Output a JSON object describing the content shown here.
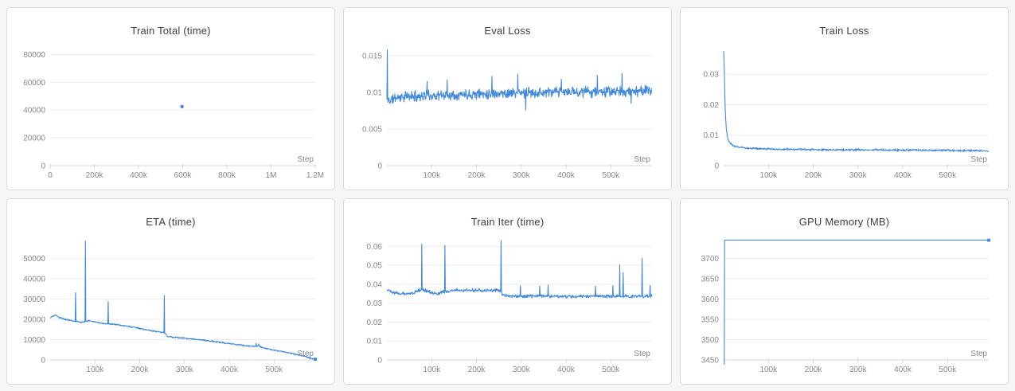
{
  "page": {
    "background": "#f6f6f7",
    "panel_background": "#ffffff",
    "panel_border": "#d9dadb"
  },
  "colors": {
    "line": "#4289dc",
    "grid": "#ededef",
    "axis": "#d6d8da",
    "tick_text": "#85888e",
    "title_text": "#3b4046"
  },
  "step_label": "Step",
  "chart_data": [
    {
      "title": "Train Total (time)",
      "type": "scatter",
      "xlabel": "Step",
      "xlim": [
        0,
        1200000
      ],
      "ylim": [
        0,
        86000
      ],
      "xtick_vals": [
        0,
        200000,
        400000,
        600000,
        800000,
        1000000,
        1200000
      ],
      "xtick_labels": [
        "0",
        "200k",
        "400k",
        "600k",
        "800k",
        "1M",
        "1.2M"
      ],
      "ytick_vals": [
        0,
        20000,
        40000,
        60000,
        80000
      ],
      "ytick_labels": [
        "0",
        "20000",
        "40000",
        "60000",
        "80000"
      ],
      "points": [
        [
          597000,
          42500
        ]
      ]
    },
    {
      "title": "Eval Loss",
      "type": "line",
      "xlabel": "Step",
      "xlim": [
        0,
        592000
      ],
      "ylim": [
        0,
        0.0163
      ],
      "xtick_vals": [
        100000,
        200000,
        300000,
        400000,
        500000
      ],
      "xtick_labels": [
        "100k",
        "200k",
        "300k",
        "400k",
        "500k"
      ],
      "ytick_vals": [
        0,
        0.005,
        0.01,
        0.015
      ],
      "ytick_labels": [
        "0",
        "0.005",
        "0.01",
        "0.015"
      ],
      "baseline": [
        [
          0,
          0.009
        ],
        [
          8000,
          0.0089
        ],
        [
          20000,
          0.0093
        ],
        [
          60000,
          0.0095
        ],
        [
          120000,
          0.0096
        ],
        [
          200000,
          0.0098
        ],
        [
          280000,
          0.0099
        ],
        [
          360000,
          0.01
        ],
        [
          450000,
          0.0101
        ],
        [
          530000,
          0.0101
        ],
        [
          592000,
          0.0103
        ]
      ],
      "noise": 0.00085,
      "samples": 700,
      "seed": 11,
      "spikes": [
        [
          900,
          0.0158
        ],
        [
          90000,
          0.0115
        ],
        [
          135000,
          0.0117
        ],
        [
          235000,
          0.0122
        ],
        [
          292000,
          0.0125
        ],
        [
          310000,
          0.0076
        ],
        [
          390000,
          0.0118
        ],
        [
          470000,
          0.0123
        ],
        [
          525000,
          0.0126
        ],
        [
          545000,
          0.0085
        ]
      ],
      "end_marker": false
    },
    {
      "title": "Train Loss",
      "type": "line",
      "xlabel": "Step",
      "xlim": [
        0,
        592000
      ],
      "ylim": [
        0,
        0.0392
      ],
      "xtick_vals": [
        100000,
        200000,
        300000,
        400000,
        500000
      ],
      "xtick_labels": [
        "100k",
        "200k",
        "300k",
        "400k",
        "500k"
      ],
      "ytick_vals": [
        0,
        0.01,
        0.02,
        0.03
      ],
      "ytick_labels": [
        "0",
        "0.01",
        "0.02",
        "0.03"
      ],
      "baseline": [
        [
          0,
          0.038
        ],
        [
          1200,
          0.033
        ],
        [
          2500,
          0.024
        ],
        [
          4000,
          0.0165
        ],
        [
          6000,
          0.012
        ],
        [
          9000,
          0.009
        ],
        [
          13000,
          0.0075
        ],
        [
          20000,
          0.0066
        ],
        [
          35000,
          0.006
        ],
        [
          60000,
          0.0057
        ],
        [
          120000,
          0.0054
        ],
        [
          250000,
          0.0052
        ],
        [
          400000,
          0.0051
        ],
        [
          592000,
          0.0049
        ]
      ],
      "noise": 0.00042,
      "samples": 700,
      "seed": 23,
      "spikes": [],
      "end_marker": false
    },
    {
      "title": "ETA (time)",
      "type": "line",
      "xlabel": "Step",
      "xlim": [
        0,
        592000
      ],
      "ylim": [
        0,
        60500
      ],
      "xtick_vals": [
        100000,
        200000,
        300000,
        400000,
        500000
      ],
      "xtick_labels": [
        "100k",
        "200k",
        "300k",
        "400k",
        "500k"
      ],
      "ytick_vals": [
        0,
        10000,
        20000,
        30000,
        40000,
        50000
      ],
      "ytick_labels": [
        "0",
        "10000",
        "20000",
        "30000",
        "40000",
        "50000"
      ],
      "baseline": [
        [
          0,
          20800
        ],
        [
          6000,
          21500
        ],
        [
          12000,
          22200
        ],
        [
          20000,
          20900
        ],
        [
          35000,
          20000
        ],
        [
          55000,
          19200
        ],
        [
          70000,
          18500
        ],
        [
          85000,
          19300
        ],
        [
          100000,
          18900
        ],
        [
          115000,
          18100
        ],
        [
          130000,
          17800
        ],
        [
          150000,
          17300
        ],
        [
          170000,
          16700
        ],
        [
          190000,
          16000
        ],
        [
          210000,
          15000
        ],
        [
          230000,
          14300
        ],
        [
          250000,
          13600
        ],
        [
          256000,
          13300
        ],
        [
          262000,
          11600
        ],
        [
          280000,
          11100
        ],
        [
          300000,
          10700
        ],
        [
          320000,
          10300
        ],
        [
          340000,
          9800
        ],
        [
          360000,
          9300
        ],
        [
          380000,
          8700
        ],
        [
          400000,
          8100
        ],
        [
          420000,
          7500
        ],
        [
          440000,
          6900
        ],
        [
          455000,
          6700
        ],
        [
          465000,
          7000
        ],
        [
          475000,
          5900
        ],
        [
          495000,
          5100
        ],
        [
          515000,
          4300
        ],
        [
          535000,
          3400
        ],
        [
          555000,
          2500
        ],
        [
          575000,
          1300
        ],
        [
          592000,
          250
        ]
      ],
      "noise": 420,
      "samples": 700,
      "seed": 37,
      "spikes": [
        [
          57000,
          33200
        ],
        [
          78500,
          58700
        ],
        [
          130000,
          28800
        ],
        [
          255000,
          31800
        ],
        [
          460000,
          8200
        ],
        [
          466000,
          7900
        ]
      ],
      "end_marker": true
    },
    {
      "title": "Train Iter (time)",
      "type": "line",
      "xlabel": "Step",
      "xlim": [
        0,
        592000
      ],
      "ylim": [
        0,
        0.0648
      ],
      "xtick_vals": [
        100000,
        200000,
        300000,
        400000,
        500000
      ],
      "xtick_labels": [
        "100k",
        "200k",
        "300k",
        "400k",
        "500k"
      ],
      "ytick_vals": [
        0,
        0.01,
        0.02,
        0.03,
        0.04,
        0.05,
        0.06
      ],
      "ytick_labels": [
        "0",
        "0.01",
        "0.02",
        "0.03",
        "0.04",
        "0.05",
        "0.06"
      ],
      "baseline": [
        [
          0,
          0.037
        ],
        [
          15000,
          0.0355
        ],
        [
          30000,
          0.035
        ],
        [
          45000,
          0.0352
        ],
        [
          60000,
          0.0355
        ],
        [
          72000,
          0.0368
        ],
        [
          80000,
          0.0372
        ],
        [
          88000,
          0.0366
        ],
        [
          100000,
          0.0356
        ],
        [
          112000,
          0.0348
        ],
        [
          125000,
          0.036
        ],
        [
          140000,
          0.0362
        ],
        [
          155000,
          0.037
        ],
        [
          170000,
          0.0366
        ],
        [
          185000,
          0.037
        ],
        [
          200000,
          0.0368
        ],
        [
          215000,
          0.0366
        ],
        [
          230000,
          0.0368
        ],
        [
          245000,
          0.0369
        ],
        [
          254000,
          0.0368
        ],
        [
          258000,
          0.0342
        ],
        [
          275000,
          0.0338
        ],
        [
          300000,
          0.0337
        ],
        [
          330000,
          0.0338
        ],
        [
          360000,
          0.0337
        ],
        [
          390000,
          0.0335
        ],
        [
          420000,
          0.0336
        ],
        [
          450000,
          0.0336
        ],
        [
          480000,
          0.0336
        ],
        [
          510000,
          0.0337
        ],
        [
          540000,
          0.0336
        ],
        [
          570000,
          0.0337
        ],
        [
          592000,
          0.0338
        ]
      ],
      "noise": 0.001,
      "samples": 700,
      "seed": 53,
      "spikes": [
        [
          78000,
          0.0612
        ],
        [
          130000,
          0.0605
        ],
        [
          255000,
          0.0632
        ],
        [
          298000,
          0.0392
        ],
        [
          341000,
          0.039
        ],
        [
          360000,
          0.0396
        ],
        [
          466000,
          0.039
        ],
        [
          505000,
          0.0394
        ],
        [
          520000,
          0.0502
        ],
        [
          528000,
          0.0461
        ],
        [
          570000,
          0.0538
        ],
        [
          588000,
          0.0394
        ]
      ],
      "end_marker": false
    },
    {
      "title": "GPU Memory (MB)",
      "type": "line",
      "xlabel": "Step",
      "xlim": [
        0,
        592000
      ],
      "ylim": [
        3450,
        3752
      ],
      "xtick_vals": [
        100000,
        200000,
        300000,
        400000,
        500000
      ],
      "xtick_labels": [
        "100k",
        "200k",
        "300k",
        "400k",
        "500k"
      ],
      "ytick_vals": [
        3450,
        3500,
        3550,
        3600,
        3650,
        3700
      ],
      "ytick_labels": [
        "3450",
        "3500",
        "3550",
        "3600",
        "3650",
        "3700"
      ],
      "points": [
        [
          1500,
          3438
        ],
        [
          2200,
          3745
        ],
        [
          592000,
          3745
        ]
      ],
      "end_marker": true
    }
  ]
}
